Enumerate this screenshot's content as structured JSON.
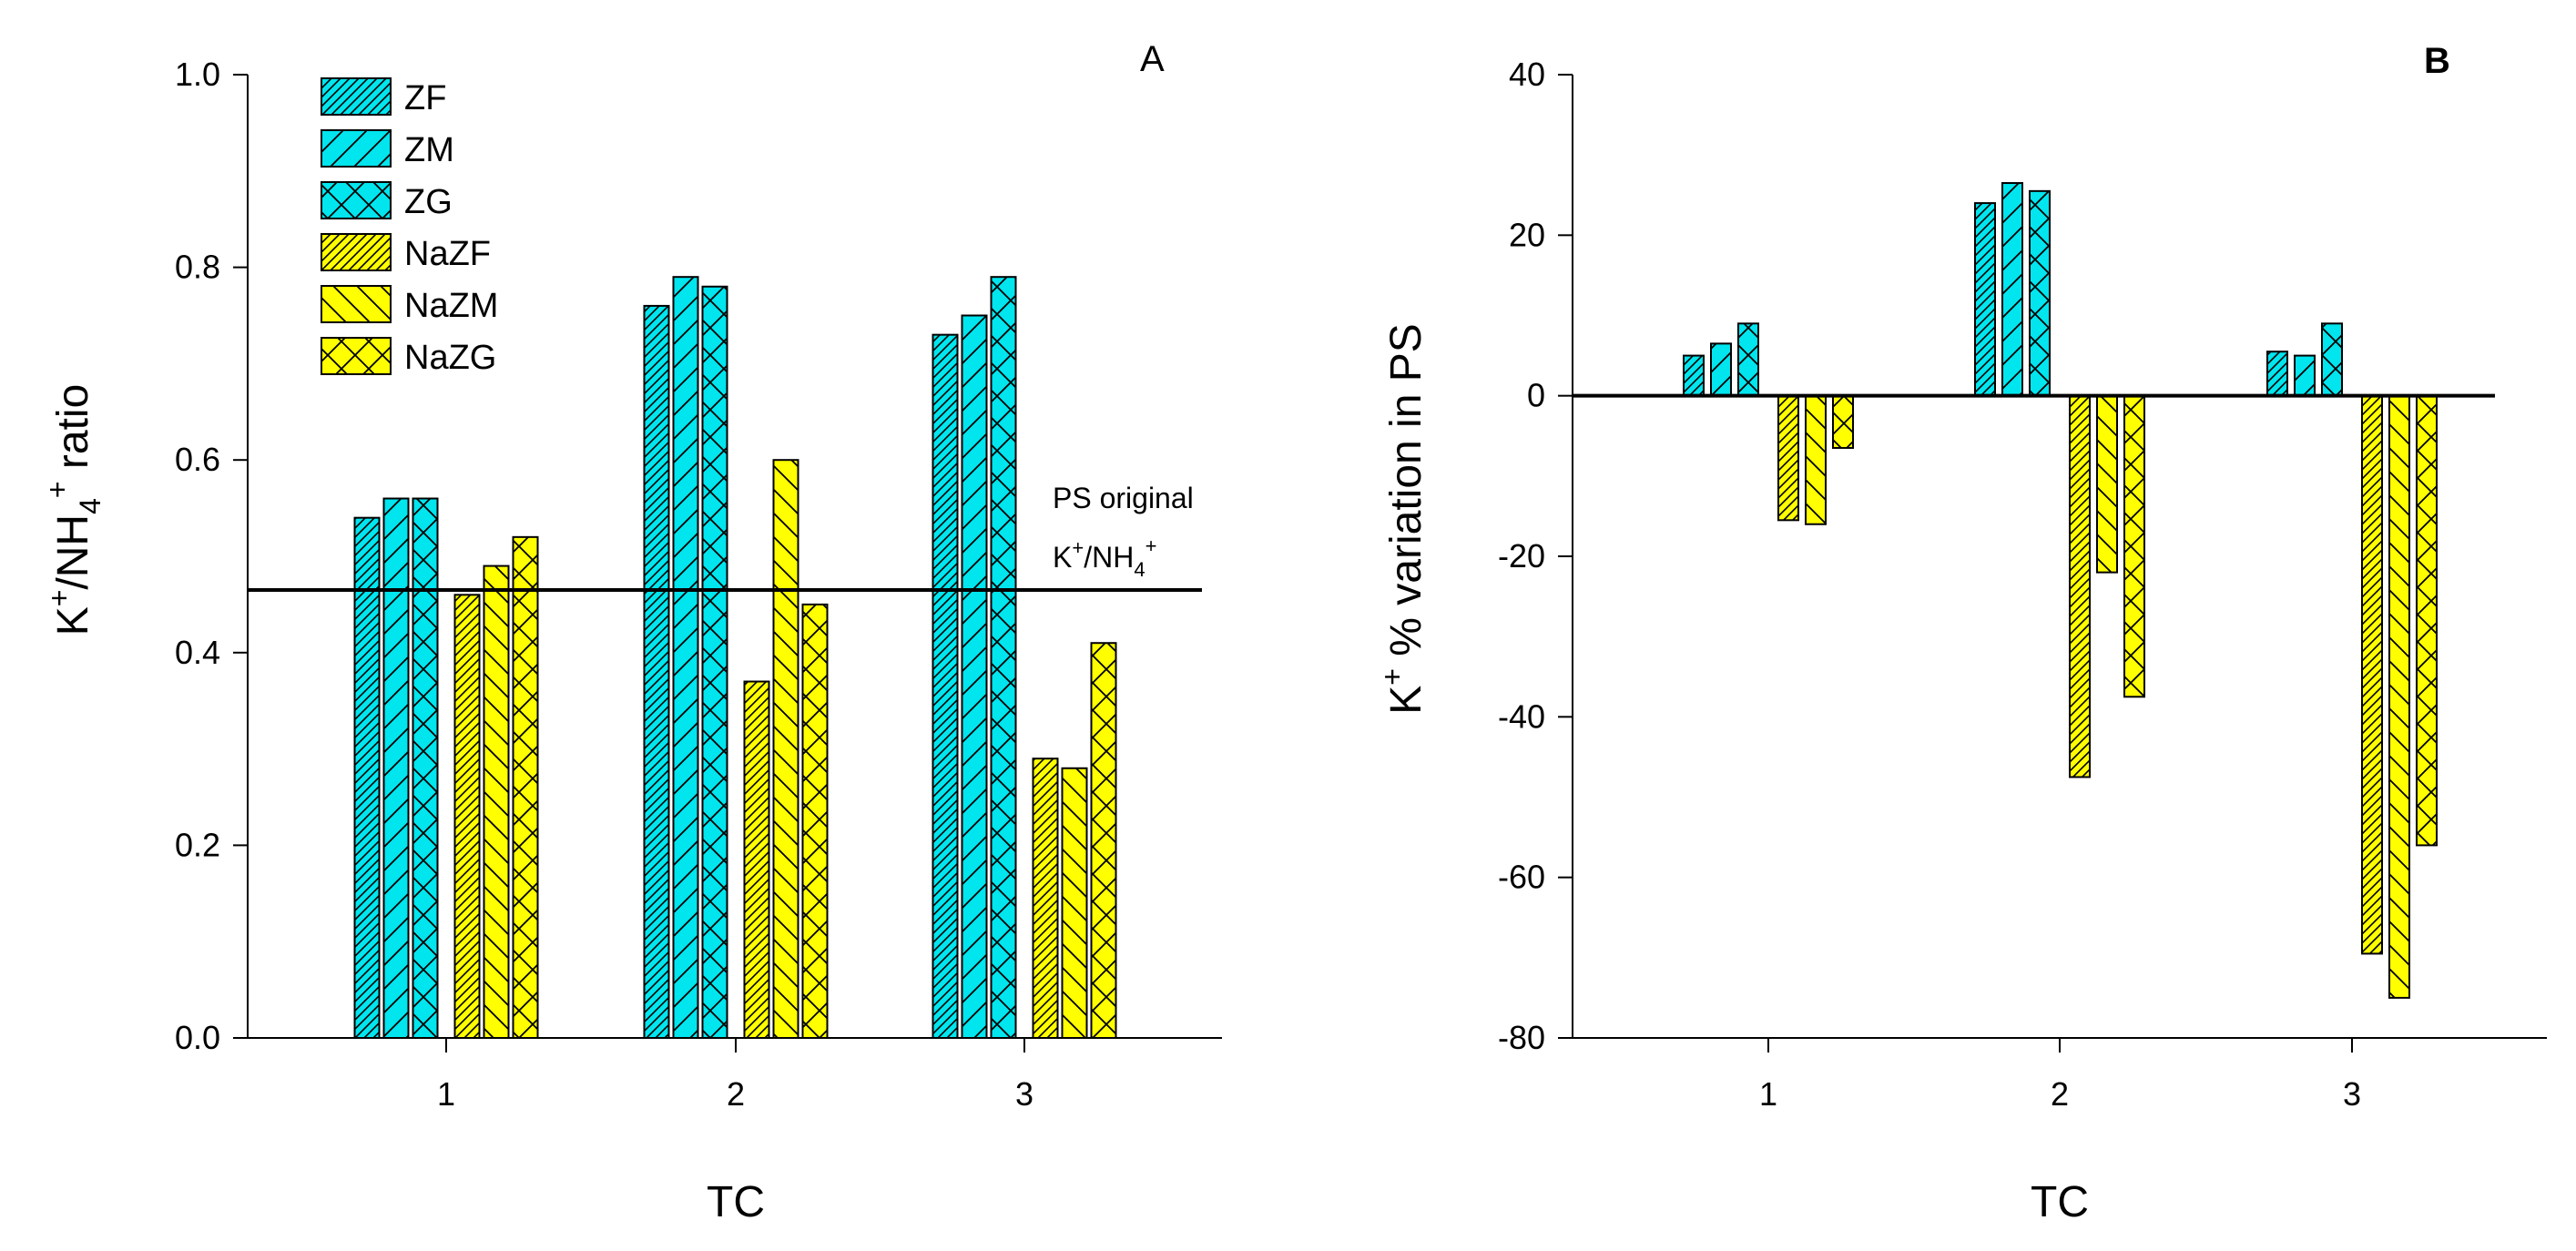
{
  "colors": {
    "cyan": "#00e5ee",
    "yellow": "#ffff00",
    "edge": "#000000",
    "refline": "#000000"
  },
  "legend": [
    {
      "name": "ZF",
      "color": "cyan",
      "hatch": "hatch-dense"
    },
    {
      "name": "ZM",
      "color": "cyan",
      "hatch": "hatch-fwd"
    },
    {
      "name": "ZG",
      "color": "cyan",
      "hatch": "hatch-cross"
    },
    {
      "name": "NaZF",
      "color": "yellow",
      "hatch": "hatch-dense"
    },
    {
      "name": "NaZM",
      "color": "yellow",
      "hatch": "hatch-back"
    },
    {
      "name": "NaZG",
      "color": "yellow",
      "hatch": "hatch-cross"
    }
  ],
  "chart_data": [
    {
      "type": "bar",
      "panel": "A",
      "panel_label": "A",
      "xlabel": "TC",
      "ylabel_main": "K",
      "ylabel_sup1": "+",
      "ylabel_mid": "/NH",
      "ylabel_sub": "4",
      "ylabel_sup2": "+",
      "ylabel_end": " ratio",
      "ylim": [
        0,
        1.0
      ],
      "yticks": [
        "0.0",
        "0.2",
        "0.4",
        "0.6",
        "0.8",
        "1.0"
      ],
      "ytick_values": [
        0,
        0.2,
        0.4,
        0.6,
        0.8,
        1.0
      ],
      "categories": [
        "1",
        "2",
        "3"
      ],
      "series": [
        {
          "name": "ZF",
          "values": [
            0.54,
            0.76,
            0.73
          ]
        },
        {
          "name": "ZM",
          "values": [
            0.56,
            0.79,
            0.75
          ]
        },
        {
          "name": "ZG",
          "values": [
            0.56,
            0.78,
            0.79
          ]
        },
        {
          "name": "NaZF",
          "values": [
            0.46,
            0.37,
            0.29
          ]
        },
        {
          "name": "NaZM",
          "values": [
            0.49,
            0.6,
            0.28
          ]
        },
        {
          "name": "NaZG",
          "values": [
            0.52,
            0.45,
            0.41
          ]
        }
      ],
      "reference_line": 0.465,
      "annotation_line1": "PS original",
      "annotation_k": "K",
      "annotation_sup1": "+",
      "annotation_mid": "/NH",
      "annotation_sub": "4",
      "annotation_sup2": "+"
    },
    {
      "type": "bar",
      "panel": "B",
      "panel_label": "B",
      "xlabel": "TC",
      "ylabel_main": "K",
      "ylabel_sup1": "+",
      "ylabel_end": " % variation in PS",
      "ylim": [
        -80,
        40
      ],
      "yticks": [
        "-80",
        "-60",
        "-40",
        "-20",
        "0",
        "20",
        "40"
      ],
      "ytick_values": [
        -80,
        -60,
        -40,
        -20,
        0,
        20,
        40
      ],
      "categories": [
        "1",
        "2",
        "3"
      ],
      "series": [
        {
          "name": "ZF",
          "values": [
            5,
            24,
            5.5
          ]
        },
        {
          "name": "ZM",
          "values": [
            6.5,
            26.5,
            5
          ]
        },
        {
          "name": "ZG",
          "values": [
            9,
            25.5,
            9
          ]
        },
        {
          "name": "NaZF",
          "values": [
            -15.5,
            -47.5,
            -69.5
          ]
        },
        {
          "name": "NaZM",
          "values": [
            -16,
            -22,
            -75
          ]
        },
        {
          "name": "NaZG",
          "values": [
            -6.5,
            -37.5,
            -56
          ]
        }
      ],
      "reference_line": 0
    }
  ]
}
